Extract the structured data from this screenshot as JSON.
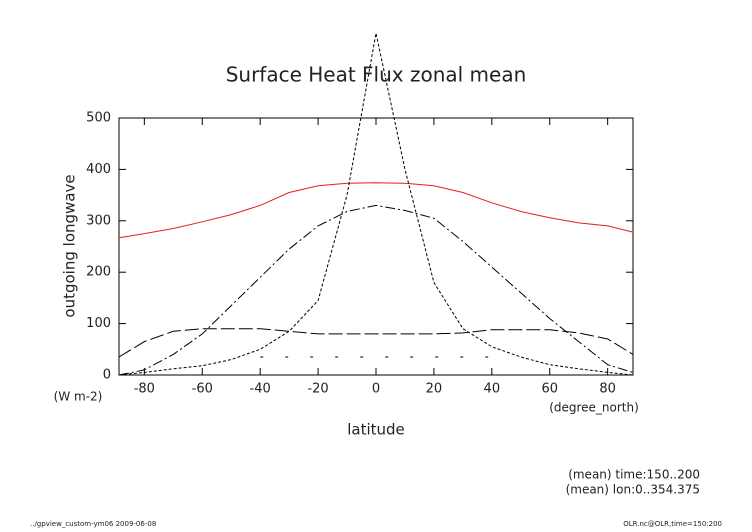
{
  "chart_data": {
    "type": "line",
    "title": "Surface Heat Flux zonal mean",
    "ylabel": "outgoing longwave",
    "yunits": "(W m-2)",
    "xlabel": "latitude",
    "xunits": "(degree_north)",
    "annotations": [
      "(mean) time:150..200",
      "(mean) lon:0..354.375"
    ],
    "footer_left": "../gpview_custom-ym06  2009-06-08",
    "footer_right": "OLR.nc@OLR,time=150:200",
    "x": [
      -88.75,
      -80,
      -70,
      -60,
      -50,
      -40,
      -30,
      -20,
      -10,
      0,
      10,
      20,
      30,
      40,
      50,
      60,
      70,
      80,
      88.75
    ],
    "series": [
      {
        "color": "#e02020",
        "dash": "solid",
        "values": [
          267,
          275,
          285,
          298,
          312,
          330,
          355,
          368,
          373,
          374,
          373,
          368,
          355,
          335,
          318,
          306,
          296,
          290,
          278
        ]
      },
      {
        "color": "#000000",
        "dash": "short",
        "values": [
          0,
          5,
          12,
          18,
          30,
          50,
          85,
          145,
          350,
          665,
          400,
          180,
          90,
          55,
          35,
          20,
          12,
          5,
          0
        ]
      },
      {
        "color": "#000000",
        "dash": "dashdot",
        "values": [
          0,
          10,
          40,
          80,
          135,
          190,
          245,
          290,
          318,
          330,
          320,
          305,
          260,
          210,
          160,
          110,
          65,
          20,
          5
        ]
      },
      {
        "color": "#000000",
        "dash": "long",
        "values": [
          35,
          65,
          85,
          90,
          90,
          90,
          85,
          80,
          80,
          80,
          80,
          80,
          82,
          88,
          88,
          88,
          82,
          70,
          40
        ]
      },
      {
        "color": "#000000",
        "dash": "dotted",
        "values": [
          null,
          null,
          null,
          null,
          null,
          35,
          35,
          35,
          35,
          35,
          35,
          35,
          35,
          35,
          null,
          null,
          null,
          null,
          null
        ]
      }
    ],
    "xlim": [
      -88.75,
      88.75
    ],
    "xticks": [
      -80,
      -60,
      -40,
      -20,
      0,
      20,
      40,
      60,
      80
    ],
    "ylim": [
      0,
      500
    ],
    "yticks": [
      0,
      100,
      200,
      300,
      400,
      500
    ]
  }
}
